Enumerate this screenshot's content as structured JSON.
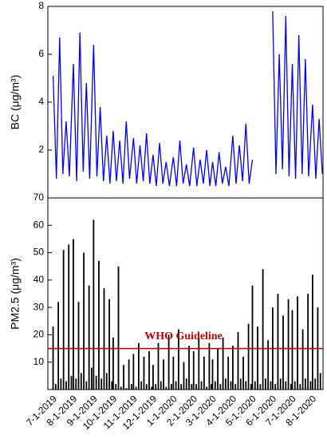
{
  "chart_data": [
    {
      "type": "line",
      "ylabel": "BC (μg/m³)",
      "color": "#0000ff",
      "xlim": [
        "6-23-2019",
        "8-17-2020"
      ],
      "ylim": [
        0,
        8
      ],
      "yticks": [
        2,
        4,
        6,
        8
      ],
      "x": [
        "7-1-2019",
        "7-6-2019",
        "7-11-2019",
        "7-16-2019",
        "7-21-2019",
        "7-26-2019",
        "8-1-2019",
        "8-6-2019",
        "8-11-2019",
        "8-16-2019",
        "8-21-2019",
        "8-26-2019",
        "9-1-2019",
        "9-6-2019",
        "9-11-2019",
        "9-16-2019",
        "9-21-2019",
        "9-26-2019",
        "10-1-2019",
        "10-6-2019",
        "10-11-2019",
        "10-16-2019",
        "10-21-2019",
        "10-26-2019",
        "11-1-2019",
        "11-6-2019",
        "11-11-2019",
        "11-16-2019",
        "11-21-2019",
        "11-26-2019",
        "12-1-2019",
        "12-6-2019",
        "12-11-2019",
        "12-16-2019",
        "12-21-2019",
        "12-26-2019",
        "1-1-2020",
        "1-6-2020",
        "1-11-2020",
        "1-16-2020",
        "1-21-2020",
        "1-26-2020",
        "2-1-2020",
        "2-6-2020",
        "2-11-2020",
        "2-16-2020",
        "2-21-2020",
        "2-26-2020",
        "3-1-2020",
        "3-6-2020",
        "3-11-2020",
        "3-16-2020",
        "3-21-2020",
        "3-26-2020",
        "4-1-2020",
        "4-6-2020",
        "4-11-2020",
        "4-16-2020",
        "4-21-2020",
        "4-26-2020",
        "5-1-2020",
        "5-6-2020",
        "5-11-2020",
        "5-16-2020",
        "5-21-2020",
        "5-26-2020",
        "6-1-2020",
        "6-6-2020",
        "6-11-2020",
        "6-16-2020",
        "6-21-2020",
        "6-26-2020",
        "7-1-2020",
        "7-6-2020",
        "7-11-2020",
        "7-16-2020",
        "7-21-2020",
        "7-26-2020",
        "8-1-2020",
        "8-6-2020",
        "8-11-2020",
        "8-16-2020"
      ],
      "values": [
        5.1,
        0.8,
        6.7,
        1.0,
        3.2,
        0.9,
        5.6,
        0.7,
        6.9,
        1.1,
        4.8,
        0.8,
        6.4,
        0.9,
        3.8,
        0.7,
        2.6,
        0.6,
        2.8,
        0.7,
        2.4,
        0.6,
        3.2,
        0.8,
        2.5,
        0.6,
        2.2,
        0.7,
        2.7,
        0.6,
        1.8,
        0.5,
        2.3,
        0.6,
        1.5,
        0.5,
        1.7,
        0.5,
        2.4,
        0.6,
        1.4,
        0.5,
        2.1,
        0.5,
        1.6,
        0.6,
        2.0,
        0.5,
        1.5,
        0.5,
        1.9,
        0.6,
        1.3,
        0.5,
        2.6,
        0.6,
        2.2,
        0.7,
        3.1,
        0.6,
        1.6,
        null,
        null,
        null,
        null,
        null,
        7.8,
        1.0,
        6.0,
        1.2,
        7.6,
        0.9,
        5.6,
        0.8,
        6.8,
        1.0,
        5.8,
        0.9,
        3.9,
        0.8,
        3.3,
        1.0
      ]
    },
    {
      "type": "bar",
      "ylabel": "PM2.5 (μg/m³)",
      "color": "#000000",
      "xlim": [
        "6-23-2019",
        "8-17-2020"
      ],
      "ylim": [
        0,
        70
      ],
      "yticks": [
        10,
        20,
        30,
        40,
        50,
        60,
        70
      ],
      "xticks": [
        "7-1-2019",
        "8-1-2019",
        "9-1-2019",
        "10-1-2019",
        "11-1-2019",
        "12-1-2019",
        "1-1-2020",
        "2-1-2020",
        "3-1-2020",
        "4-1-2020",
        "5-1-2020",
        "6-1-2020",
        "7-1-2020",
        "8-1-2020"
      ],
      "hline": {
        "value": 15,
        "label": "WHO Guideline",
        "color": "#c00000"
      },
      "x": [
        "7-1-2019",
        "7-5-2019",
        "7-9-2019",
        "7-13-2019",
        "7-17-2019",
        "7-21-2019",
        "7-25-2019",
        "7-29-2019",
        "8-1-2019",
        "8-5-2019",
        "8-9-2019",
        "8-13-2019",
        "8-17-2019",
        "8-21-2019",
        "8-25-2019",
        "8-29-2019",
        "9-1-2019",
        "9-5-2019",
        "9-9-2019",
        "9-13-2019",
        "9-17-2019",
        "9-21-2019",
        "9-25-2019",
        "9-29-2019",
        "10-1-2019",
        "10-5-2019",
        "10-9-2019",
        "10-13-2019",
        "10-17-2019",
        "10-21-2019",
        "10-25-2019",
        "10-29-2019",
        "11-1-2019",
        "11-5-2019",
        "11-9-2019",
        "11-13-2019",
        "11-17-2019",
        "11-21-2019",
        "11-25-2019",
        "11-29-2019",
        "12-1-2019",
        "12-5-2019",
        "12-9-2019",
        "12-13-2019",
        "12-17-2019",
        "12-21-2019",
        "12-25-2019",
        "12-29-2019",
        "1-1-2020",
        "1-5-2020",
        "1-9-2020",
        "1-13-2020",
        "1-17-2020",
        "1-21-2020",
        "1-25-2020",
        "1-29-2020",
        "2-1-2020",
        "2-5-2020",
        "2-9-2020",
        "2-13-2020",
        "2-17-2020",
        "2-21-2020",
        "2-25-2020",
        "2-28-2020",
        "3-1-2020",
        "3-5-2020",
        "3-9-2020",
        "3-13-2020",
        "3-17-2020",
        "3-21-2020",
        "3-25-2020",
        "3-29-2020",
        "4-1-2020",
        "4-5-2020",
        "4-9-2020",
        "4-13-2020",
        "4-17-2020",
        "4-21-2020",
        "4-25-2020",
        "4-29-2020",
        "5-1-2020",
        "5-5-2020",
        "5-9-2020",
        "5-13-2020",
        "5-17-2020",
        "5-21-2020",
        "5-25-2020",
        "5-29-2020",
        "6-1-2020",
        "6-5-2020",
        "6-9-2020",
        "6-13-2020",
        "6-17-2020",
        "6-21-2020",
        "6-25-2020",
        "6-29-2020",
        "7-1-2020",
        "7-5-2020",
        "7-9-2020",
        "7-13-2020",
        "7-17-2020",
        "7-21-2020",
        "7-25-2020",
        "7-29-2020",
        "8-1-2020",
        "8-5-2020",
        "8-9-2020",
        "8-13-2020"
      ],
      "values": [
        23,
        2,
        32,
        4,
        51,
        3,
        53,
        5,
        55,
        4,
        32,
        6,
        50,
        3,
        38,
        8,
        62,
        5,
        47,
        4,
        37,
        6,
        33,
        3,
        19,
        2,
        45,
        1,
        9,
        0.5,
        11,
        2,
        13,
        1,
        17,
        3,
        12,
        2,
        14,
        1,
        9,
        2,
        17,
        3,
        11,
        1,
        20,
        2,
        12,
        3,
        22,
        2,
        10,
        4,
        16,
        2,
        14,
        2,
        19,
        3,
        12,
        1,
        17,
        2,
        11,
        3,
        15,
        2,
        19,
        4,
        12,
        3,
        16,
        2,
        21,
        4,
        12,
        3,
        24,
        2,
        38,
        3,
        23,
        2,
        44,
        4,
        18,
        3,
        30,
        2,
        35,
        4,
        27,
        3,
        33,
        2,
        29,
        3,
        34,
        2,
        22,
        4,
        35,
        3,
        42,
        4,
        30,
        6
      ]
    }
  ]
}
